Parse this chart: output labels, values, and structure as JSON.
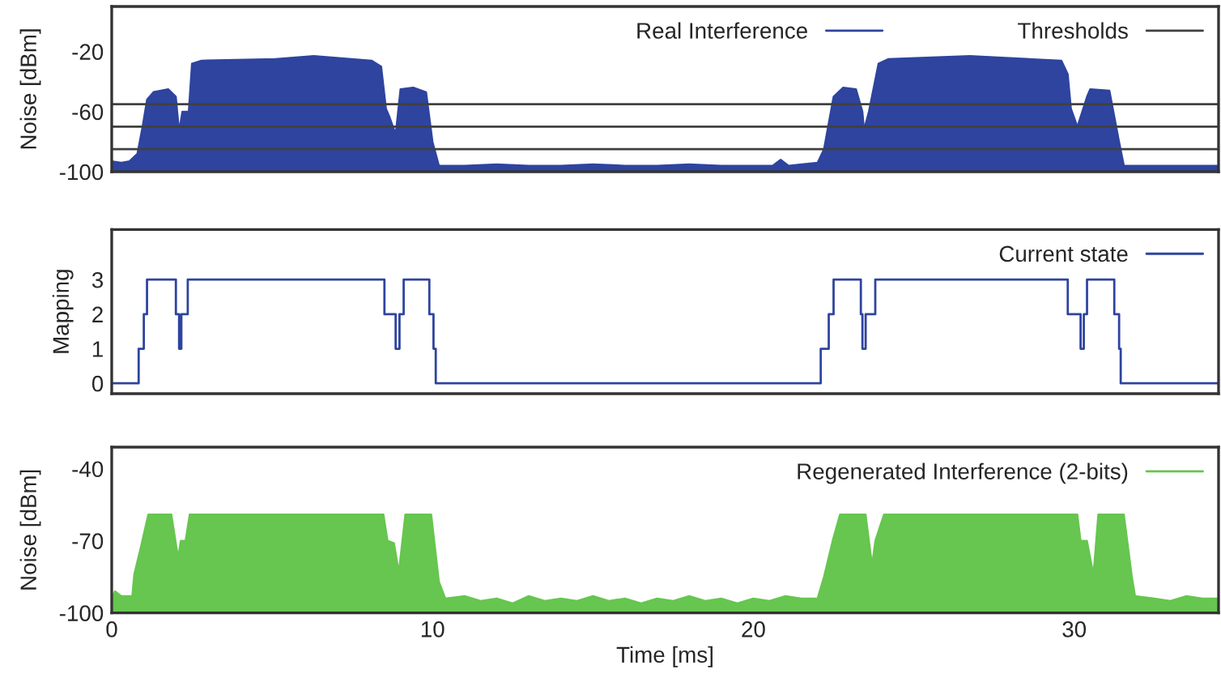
{
  "chart_data": [
    {
      "type": "area",
      "ylabel": "Noise [dBm]",
      "xlim": [
        0,
        34.5
      ],
      "ylim": [
        -100,
        10
      ],
      "yticks": [
        -100,
        -60,
        -20
      ],
      "tick_labels": "y",
      "grid": false,
      "legend": "top right",
      "series": [
        {
          "name": "Real Interference",
          "color": "#2e449f",
          "x": [
            0,
            0.3,
            0.55,
            0.8,
            0.96,
            1.1,
            1.3,
            1.76,
            2.0,
            2.1,
            2.2,
            2.4,
            2.5,
            2.8,
            5.1,
            6.3,
            8.1,
            8.4,
            8.55,
            8.65,
            8.85,
            9.0,
            9.4,
            9.8,
            10.0,
            10.2,
            11,
            12,
            13,
            14,
            15,
            16,
            17,
            18,
            19,
            20,
            20.6,
            20.85,
            21.1,
            21.5,
            22.0,
            22.2,
            22.5,
            22.8,
            23.2,
            23.4,
            23.45,
            23.6,
            23.9,
            24.2,
            26.75,
            29.6,
            29.8,
            29.9,
            30.1,
            30.4,
            30.5,
            31.1,
            31.4,
            31.55,
            32,
            33,
            34.5
          ],
          "values": [
            -93,
            -94,
            -93,
            -88,
            -70,
            -52,
            -47,
            -45,
            -50,
            -73,
            -60,
            -60,
            -28,
            -26,
            -25,
            -23,
            -26,
            -30,
            -58,
            -63,
            -75,
            -45,
            -44,
            -47,
            -80,
            -96,
            -96,
            -95,
            -96,
            -96,
            -95,
            -96,
            -96,
            -95,
            -96,
            -96,
            -96,
            -92,
            -96,
            -95,
            -94,
            -85,
            -50,
            -44,
            -45,
            -60,
            -72,
            -60,
            -28,
            -25,
            -23,
            -26,
            -35,
            -58,
            -70,
            -50,
            -45,
            -46,
            -80,
            -96,
            -96,
            -96,
            -96
          ]
        }
      ],
      "ref_lines": [
        {
          "axis": "y",
          "value": -55,
          "label": "Thresholds",
          "color": "#404040"
        },
        {
          "axis": "y",
          "value": -70,
          "label": null,
          "color": "#404040"
        },
        {
          "axis": "y",
          "value": -85,
          "label": null,
          "color": "#404040"
        }
      ]
    },
    {
      "type": "step",
      "ylabel": "Mapping",
      "xlim": [
        0,
        34.5
      ],
      "ylim": [
        -0.3,
        4.45
      ],
      "yticks": [
        0,
        1,
        2,
        3
      ],
      "tick_labels": "y",
      "grid": false,
      "legend": "top right",
      "series": [
        {
          "name": "Current state",
          "color": "#2e449f",
          "x": [
            0,
            0.84,
            1.0,
            1.1,
            2.0,
            2.1,
            2.17,
            2.37,
            8.5,
            8.85,
            8.97,
            9.1,
            9.9,
            10.03,
            10.1,
            22.1,
            22.35,
            22.5,
            23.35,
            23.4,
            23.5,
            23.8,
            29.8,
            30.2,
            30.3,
            30.4,
            31.25,
            31.4,
            31.45,
            34.5
          ],
          "values": [
            0,
            1,
            2,
            3,
            2,
            1,
            2,
            3,
            2,
            1,
            2,
            3,
            2,
            1,
            0,
            1,
            2,
            3,
            2,
            1,
            2,
            3,
            2,
            1,
            2,
            3,
            2,
            1,
            0,
            0
          ]
        }
      ]
    },
    {
      "type": "area",
      "xlabel": "Time [ms]",
      "ylabel": "Noise [dBm]",
      "xlim": [
        0,
        34.5
      ],
      "ylim": [
        -100,
        -31
      ],
      "xticks": [
        0,
        10,
        20,
        30
      ],
      "yticks": [
        -100,
        -70,
        -40
      ],
      "grid": false,
      "legend": "top right",
      "series": [
        {
          "name": "Regenerated Interference (2-bits)",
          "color": "#66c64f",
          "x": [
            0,
            0.1,
            0.3,
            0.64,
            0.7,
            0.9,
            1.14,
            1.86,
            2.07,
            2.15,
            2.3,
            2.43,
            8.47,
            8.6,
            8.8,
            8.95,
            9.15,
            9.96,
            10.2,
            10.4,
            11,
            11.5,
            12,
            12.5,
            13,
            13.5,
            14,
            14.5,
            15,
            15.5,
            16,
            16.5,
            17,
            17.5,
            18,
            18.5,
            19,
            19.5,
            20,
            20.5,
            21,
            21.5,
            22.0,
            22.2,
            22.47,
            22.7,
            23.5,
            23.7,
            23.8,
            24.07,
            30.1,
            30.2,
            30.4,
            30.6,
            30.75,
            31.55,
            31.8,
            31.9,
            32.5,
            33,
            33.5,
            34,
            34.5
          ],
          "values": [
            -94,
            -91,
            -93,
            -93,
            -84,
            -73,
            -59,
            -59,
            -77,
            -70,
            -70,
            -59,
            -59,
            -70,
            -71,
            -83,
            -59,
            -59,
            -87,
            -94,
            -93,
            -95,
            -94,
            -96,
            -93,
            -95,
            -94,
            -95,
            -93,
            -95,
            -94,
            -96,
            -94,
            -95,
            -93,
            -95,
            -94,
            -96,
            -94,
            -95,
            -93,
            -94,
            -94,
            -85,
            -70,
            -59,
            -59,
            -80,
            -70,
            -59,
            -59,
            -70,
            -70,
            -84,
            -59,
            -59,
            -85,
            -93,
            -94,
            -95,
            -93,
            -94,
            -94
          ]
        }
      ]
    }
  ]
}
